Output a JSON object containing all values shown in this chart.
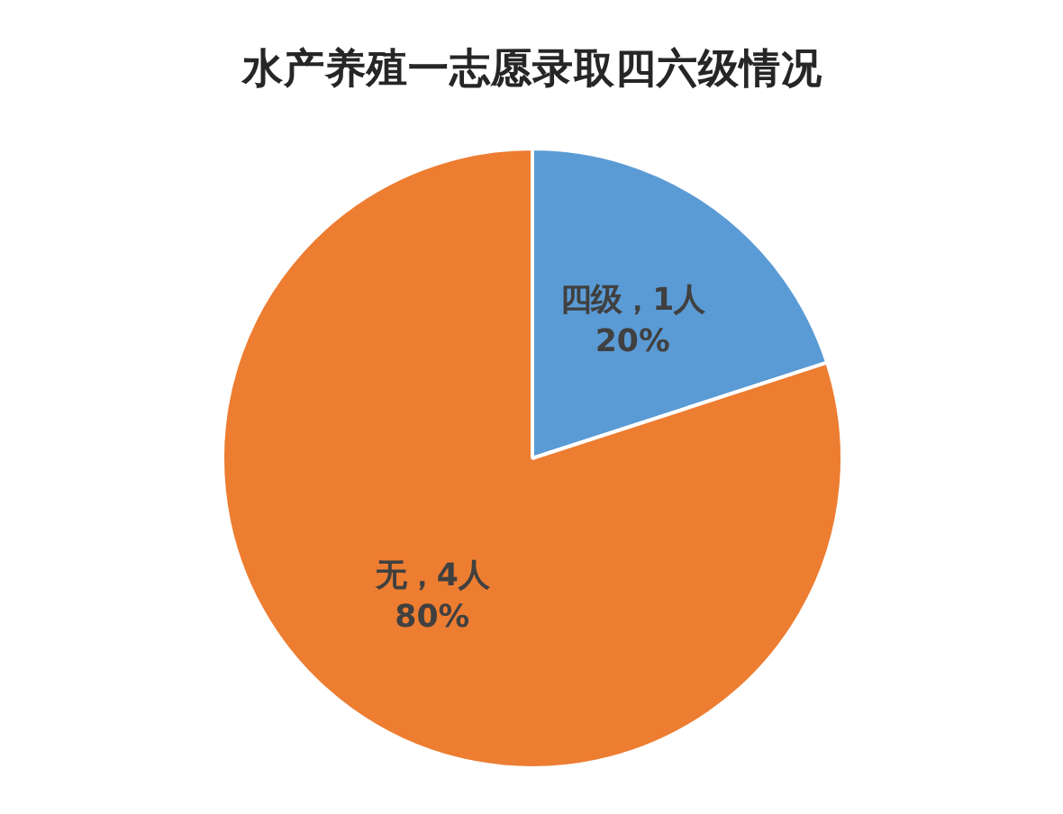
{
  "chart_data": {
    "type": "pie",
    "title": "水产养殖一志愿录取四六级情况",
    "categories": [
      "四级，1人",
      "无，4人"
    ],
    "values": [
      20,
      80
    ],
    "colors": [
      "#5b9bd5",
      "#ed7d31"
    ],
    "value_labels": [
      "20%",
      "80%"
    ]
  }
}
